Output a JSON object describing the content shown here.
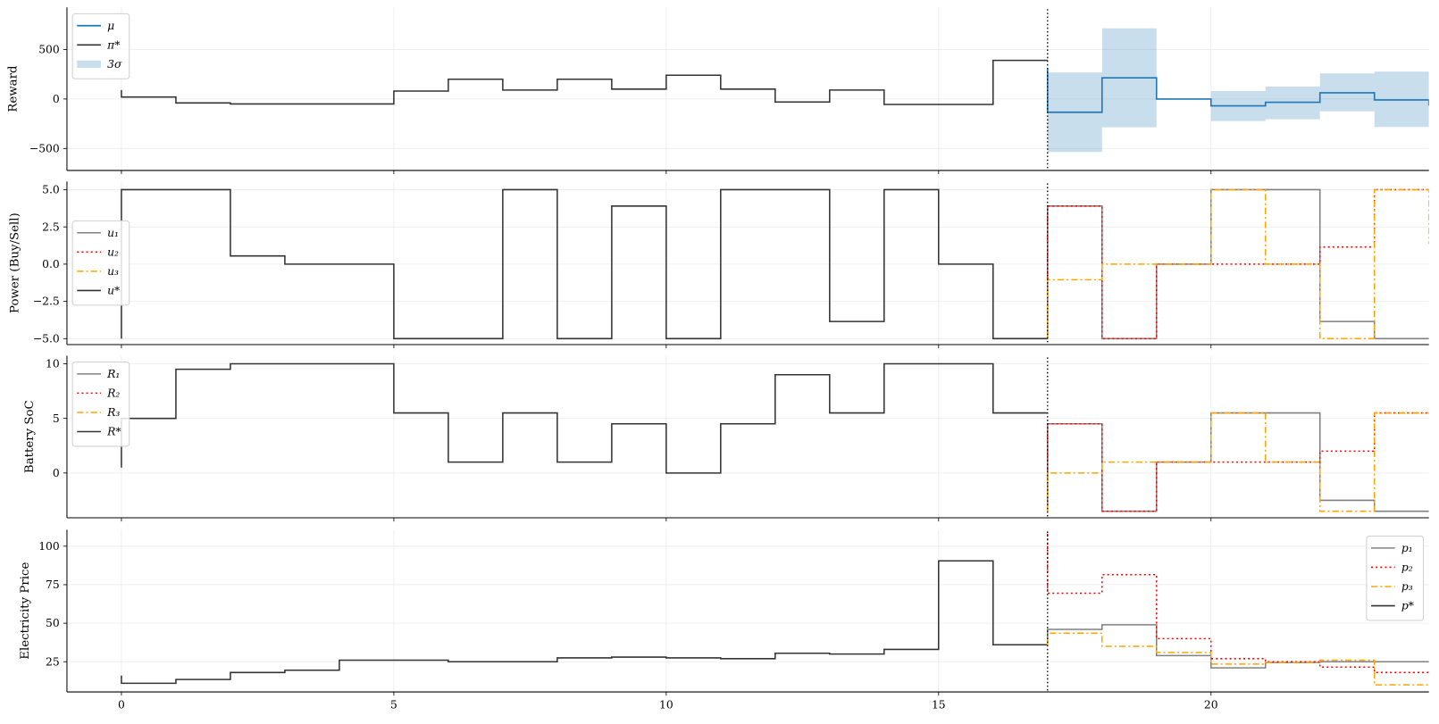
{
  "chart_data": {
    "type": "line",
    "drawstyle": "steps-pre",
    "xlim": [
      -1,
      24
    ],
    "xticks": [
      0,
      5,
      10,
      15,
      20
    ],
    "grid": true,
    "divider_x": 17,
    "colors": {
      "mu": "#1f77b4",
      "band": "#1f77b4",
      "star": "#333333",
      "s1": "#808080",
      "s2": "#ff0000",
      "s3": "#ffa500",
      "divider": "#000000"
    },
    "panels": [
      {
        "ylabel": "Reward",
        "ylim": [
          -722,
          926
        ],
        "yticks": [
          -500,
          0,
          500
        ],
        "ytick_labels": [
          "−500",
          "0",
          "500"
        ],
        "legend": "upper-left",
        "legend_entries": [
          {
            "label": "μ",
            "style": "mu"
          },
          {
            "label": "π*",
            "style": "star"
          },
          {
            "label": "3σ",
            "style": "band"
          }
        ],
        "series": [
          {
            "name": "π*",
            "style": "star",
            "x": [
              0,
              1,
              2,
              3,
              4,
              5,
              6,
              7,
              8,
              9,
              10,
              11,
              12,
              13,
              14,
              15,
              16,
              17
            ],
            "y": [
              90,
              20,
              -40,
              -50,
              -50,
              -50,
              80,
              200,
              90,
              200,
              100,
              240,
              100,
              -30,
              90,
              -55,
              -55,
              390
            ]
          },
          {
            "name": "μ",
            "style": "mu",
            "x": [
              17,
              18,
              19,
              20,
              21,
              22,
              23,
              24,
              25
            ],
            "y": [
              312,
              -134,
              214,
              0,
              -69,
              -33,
              63,
              -9,
              -60
            ]
          }
        ],
        "band": {
          "name": "3σ",
          "x": [
            17,
            18,
            19,
            20,
            21,
            22,
            23,
            24
          ],
          "lower": [
            -536,
            -536,
            -286,
            0,
            -223,
            -205,
            -125,
            -283
          ],
          "upper": [
            268,
            268,
            714,
            0,
            80,
            125,
            259,
            277
          ]
        }
      },
      {
        "ylabel": "Power (Buy/Sell)",
        "ylim": [
          -5.4,
          5.55
        ],
        "yticks": [
          -5,
          -2.5,
          0,
          2.5,
          5
        ],
        "ytick_labels": [
          "−5.0",
          "−2.5",
          "0.0",
          "2.5",
          "5.0"
        ],
        "legend": "center-left",
        "legend_entries": [
          {
            "label": "u₁",
            "style": "s1"
          },
          {
            "label": "u₂",
            "style": "s2"
          },
          {
            "label": "u₃",
            "style": "s3"
          },
          {
            "label": "u*",
            "style": "star"
          }
        ],
        "series": [
          {
            "name": "u*",
            "style": "star",
            "x": [
              0,
              1,
              2,
              3,
              4,
              5,
              6,
              7,
              8,
              9,
              10,
              11,
              12,
              13,
              14,
              15,
              16,
              17
            ],
            "y": [
              -5,
              5,
              5,
              0.55,
              0,
              0,
              -5,
              -5,
              5,
              -5,
              3.9,
              -5,
              5,
              5,
              -3.85,
              5,
              0,
              -5
            ]
          },
          {
            "name": "u₁",
            "style": "s1",
            "x": [
              17,
              18,
              19,
              20,
              21,
              22,
              23,
              24
            ],
            "y": [
              -5,
              3.9,
              -5,
              0,
              5,
              5,
              -3.85,
              -5
            ]
          },
          {
            "name": "u₂",
            "style": "s2",
            "x": [
              17,
              18,
              19,
              20,
              21,
              22,
              23,
              24
            ],
            "y": [
              -5,
              3.9,
              -5,
              0,
              0,
              0,
              1.15,
              5
            ]
          },
          {
            "name": "u₃",
            "style": "s3",
            "x": [
              17,
              18,
              19,
              20,
              21,
              22,
              23,
              24,
              25
            ],
            "y": [
              -5,
              -1.05,
              0,
              0,
              5,
              0,
              -5,
              5,
              1.4
            ]
          }
        ]
      },
      {
        "ylabel": "Battery SoC",
        "ylim": [
          -4.1,
          10.75
        ],
        "yticks": [
          0,
          5,
          10
        ],
        "ytick_labels": [
          "0",
          "5",
          "10"
        ],
        "legend": "upper-left",
        "legend_entries": [
          {
            "label": "R₁",
            "style": "s1"
          },
          {
            "label": "R₂",
            "style": "s2"
          },
          {
            "label": "R₃",
            "style": "s3"
          },
          {
            "label": "R*",
            "style": "star"
          }
        ],
        "series": [
          {
            "name": "R*",
            "style": "star",
            "x": [
              0,
              1,
              2,
              3,
              4,
              5,
              6,
              7,
              8,
              9,
              10,
              11,
              12,
              13,
              14,
              15,
              16,
              17
            ],
            "y": [
              0.5,
              5,
              9.5,
              10,
              10,
              10,
              5.5,
              1,
              5.5,
              1,
              4.5,
              0,
              4.5,
              9,
              5.5,
              10,
              10,
              5.5
            ]
          },
          {
            "name": "R₁",
            "style": "s1",
            "x": [
              17,
              18,
              19,
              20,
              21,
              22,
              23,
              24
            ],
            "y": [
              -3.5,
              4.5,
              -3.5,
              1,
              5.5,
              5.5,
              -2.5,
              -3.5
            ]
          },
          {
            "name": "R₂",
            "style": "s2",
            "x": [
              17,
              18,
              19,
              20,
              21,
              22,
              23,
              24
            ],
            "y": [
              -3.5,
              4.5,
              -3.5,
              1,
              1,
              1,
              2,
              5.5
            ]
          },
          {
            "name": "R₃",
            "style": "s3",
            "x": [
              17,
              18,
              19,
              20,
              21,
              22,
              23,
              24
            ],
            "y": [
              -3.5,
              0,
              1,
              1,
              5.5,
              1,
              -3.5,
              5.5
            ]
          }
        ]
      },
      {
        "ylabel": "Electricity Price",
        "ylim": [
          5.4,
          110.7
        ],
        "yticks": [
          25,
          50,
          75,
          100
        ],
        "ytick_labels": [
          "25",
          "50",
          "75",
          "100"
        ],
        "xtick_labels": [
          "0",
          "5",
          "10",
          "15",
          "20"
        ],
        "legend": "upper-right",
        "legend_entries": [
          {
            "label": "p₁",
            "style": "s1"
          },
          {
            "label": "p₂",
            "style": "s2"
          },
          {
            "label": "p₃",
            "style": "s3"
          },
          {
            "label": "p*",
            "style": "star"
          }
        ],
        "series": [
          {
            "name": "p*",
            "style": "star",
            "x": [
              0,
              1,
              2,
              3,
              4,
              5,
              6,
              7,
              8,
              9,
              10,
              11,
              12,
              13,
              14,
              15,
              16,
              17
            ],
            "y": [
              16,
              11,
              13.5,
              18,
              19.5,
              26,
              26,
              25,
              25,
              27.5,
              28,
              27.5,
              27,
              30.5,
              30,
              33,
              90.5,
              36
            ]
          },
          {
            "name": "p₁",
            "style": "s1",
            "x": [
              17,
              18,
              19,
              20,
              21,
              22,
              23,
              24
            ],
            "y": [
              36,
              46,
              49,
              29,
              21,
              24.5,
              25,
              25
            ]
          },
          {
            "name": "p₂",
            "style": "s2",
            "x": [
              17,
              18,
              19,
              20,
              21,
              22,
              23,
              24
            ],
            "y": [
              108,
              69.5,
              81.5,
              40,
              27,
              25,
              21.5,
              18
            ]
          },
          {
            "name": "p₃",
            "style": "s3",
            "x": [
              17,
              18,
              19,
              20,
              21,
              22,
              23,
              24
            ],
            "y": [
              36,
              43.5,
              35,
              31,
              23.5,
              24.5,
              26,
              10
            ]
          }
        ]
      }
    ]
  }
}
